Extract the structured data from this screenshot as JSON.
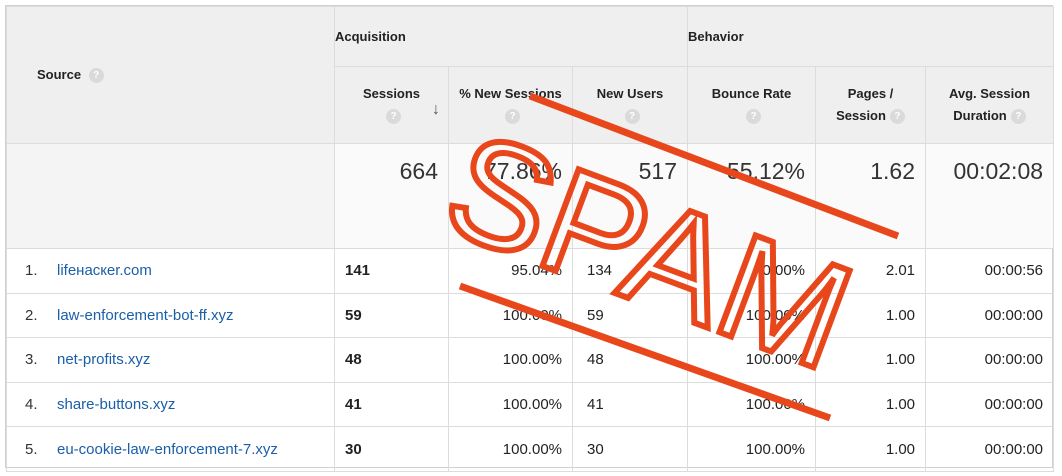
{
  "header": {
    "source_label": "Source",
    "acquisition_label": "Acquisition",
    "behavior_label": "Behavior",
    "columns": {
      "sessions": "Sessions",
      "pct_new_sessions": "% New Sessions",
      "new_users": "New Users",
      "bounce_rate": "Bounce Rate",
      "pages_session_1": "Pages /",
      "pages_session_2": "Session",
      "avg_session_1": "Avg. Session",
      "avg_session_2": "Duration"
    },
    "help_glyph": "?",
    "sort_glyph": "↓"
  },
  "totals": {
    "sessions": "664",
    "pct_new_sessions": "77.86%",
    "new_users": "517",
    "bounce_rate": "55.12%",
    "pages_session": "1.62",
    "avg_session_duration": "00:02:08"
  },
  "rows": [
    {
      "index": "1.",
      "source": "lifeнacкer.com",
      "sessions": "141",
      "pct_new": "95.04%",
      "new_users": "134",
      "bounce": "0.00%",
      "pages": "2.01",
      "duration": "00:00:56"
    },
    {
      "index": "2.",
      "source": "law-enforcement-bot-ff.xyz",
      "sessions": "59",
      "pct_new": "100.00%",
      "new_users": "59",
      "bounce": "100.00%",
      "pages": "1.00",
      "duration": "00:00:00"
    },
    {
      "index": "3.",
      "source": "net-profits.xyz",
      "sessions": "48",
      "pct_new": "100.00%",
      "new_users": "48",
      "bounce": "100.00%",
      "pages": "1.00",
      "duration": "00:00:00"
    },
    {
      "index": "4.",
      "source": "share-buttons.xyz",
      "sessions": "41",
      "pct_new": "100.00%",
      "new_users": "41",
      "bounce": "100.00%",
      "pages": "1.00",
      "duration": "00:00:00"
    },
    {
      "index": "5.",
      "source": "eu-cookie-law-enforcement-7.xyz",
      "sessions": "30",
      "pct_new": "100.00%",
      "new_users": "30",
      "bounce": "100.00%",
      "pages": "1.00",
      "duration": "00:00:00"
    }
  ],
  "stamp": {
    "text": "SPAM",
    "color": "#e8471c"
  },
  "colors": {
    "link": "#1a5fa8",
    "header_bg": "#efefef"
  }
}
